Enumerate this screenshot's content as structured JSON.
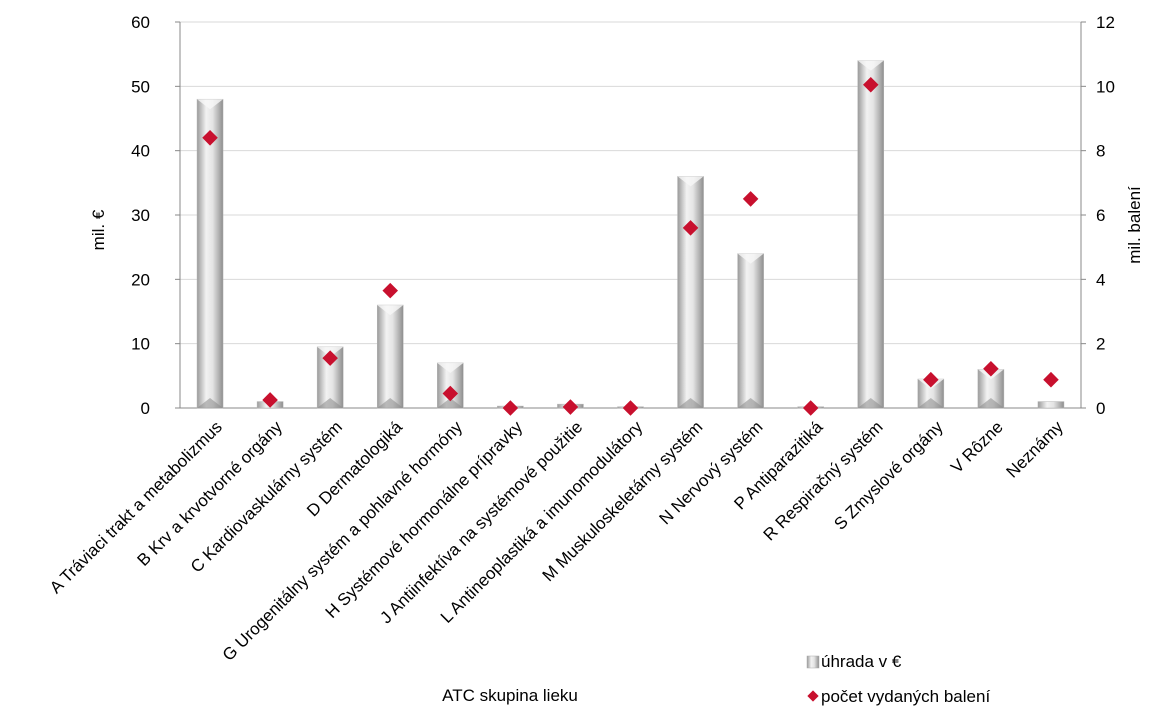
{
  "chart_data": {
    "type": "bar",
    "xlabel": "ATC skupina lieku",
    "ylabel": "mil. €",
    "y2label": "mil. balení",
    "ylim": [
      0,
      60
    ],
    "y2lim": [
      0,
      12
    ],
    "yticks": [
      "0",
      "10",
      "20",
      "30",
      "40",
      "50",
      "60"
    ],
    "y2ticks": [
      "0",
      "2",
      "4",
      "6",
      "8",
      "10",
      "12"
    ],
    "grid": true,
    "legend_position": "bottom-right",
    "categories": [
      "A Tráviaci trakt a metabolizmus",
      "B Krv a krvotvorné orgány",
      "C Kardiovaskulárny systém",
      "D Dermatologiká",
      "G Urogenitálny systém a pohlavné hormóny",
      "H Systémové hormonálne prípravky",
      "J Antiinfektíva na systémové použitie",
      "L Antineoplastiká a imunomodulátory",
      "M Muskuloskeletárny systém",
      "N Nervový systém",
      "P Antiparazitiká",
      "R Respiračný systém",
      "S Zmyslové orgány",
      "V Rôzne",
      "Neznámy"
    ],
    "series": [
      {
        "name": "úhrada v €",
        "type": "bar",
        "axis": "left",
        "color": "#c8c8c8",
        "values": [
          48,
          1,
          9.5,
          16,
          7,
          0.3,
          0.6,
          0.2,
          36,
          24,
          0.2,
          54,
          4.5,
          6,
          1
        ]
      },
      {
        "name": "počet vydaných balení",
        "type": "scatter",
        "axis": "right",
        "color": "#c8102e",
        "values": [
          8.4,
          0.25,
          1.55,
          3.65,
          0.45,
          0.0,
          0.03,
          0.0,
          5.6,
          6.5,
          0.0,
          10.05,
          0.88,
          1.22,
          0.88
        ]
      }
    ]
  }
}
